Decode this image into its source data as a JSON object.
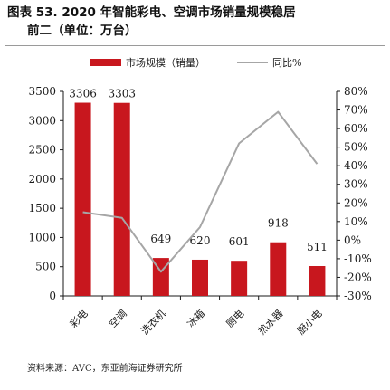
{
  "title": {
    "line1": "图表 53. 2020 年智能彩电、空调市场销量规模稳居",
    "line2": "前二（单位：万台）"
  },
  "source": "资料来源：AVC，东亚前海证券研究所",
  "colors": {
    "bar": "#c8171e",
    "line": "#a6a6a6",
    "axis": "#1a1a1a"
  },
  "chart_data": {
    "type": "bar",
    "categories": [
      "彩电",
      "空调",
      "洗衣机",
      "冰箱",
      "厨电",
      "热水器",
      "厨小电"
    ],
    "series": [
      {
        "name": "市场规模（销量）",
        "type": "bar",
        "axis": "left",
        "values": [
          3306,
          3303,
          649,
          620,
          601,
          918,
          511
        ]
      },
      {
        "name": "同比%",
        "type": "line",
        "axis": "right",
        "values": [
          0.15,
          0.12,
          -0.17,
          0.07,
          0.52,
          0.69,
          0.41
        ]
      }
    ],
    "data_labels": [
      "3306",
      "3303",
      "649",
      "620",
      "601",
      "918",
      "511"
    ],
    "y_left": {
      "min": 0,
      "max": 3500,
      "step": 500,
      "ticks": [
        "0",
        "500",
        "1000",
        "1500",
        "2000",
        "2500",
        "3000",
        "3500"
      ]
    },
    "y_right": {
      "min": -0.3,
      "max": 0.8,
      "step": 0.1,
      "ticks": [
        "-30%",
        "-20%",
        "-10%",
        "0%",
        "10%",
        "20%",
        "30%",
        "40%",
        "50%",
        "60%",
        "70%",
        "80%"
      ]
    },
    "grid": false,
    "legend_position": "top-center"
  }
}
